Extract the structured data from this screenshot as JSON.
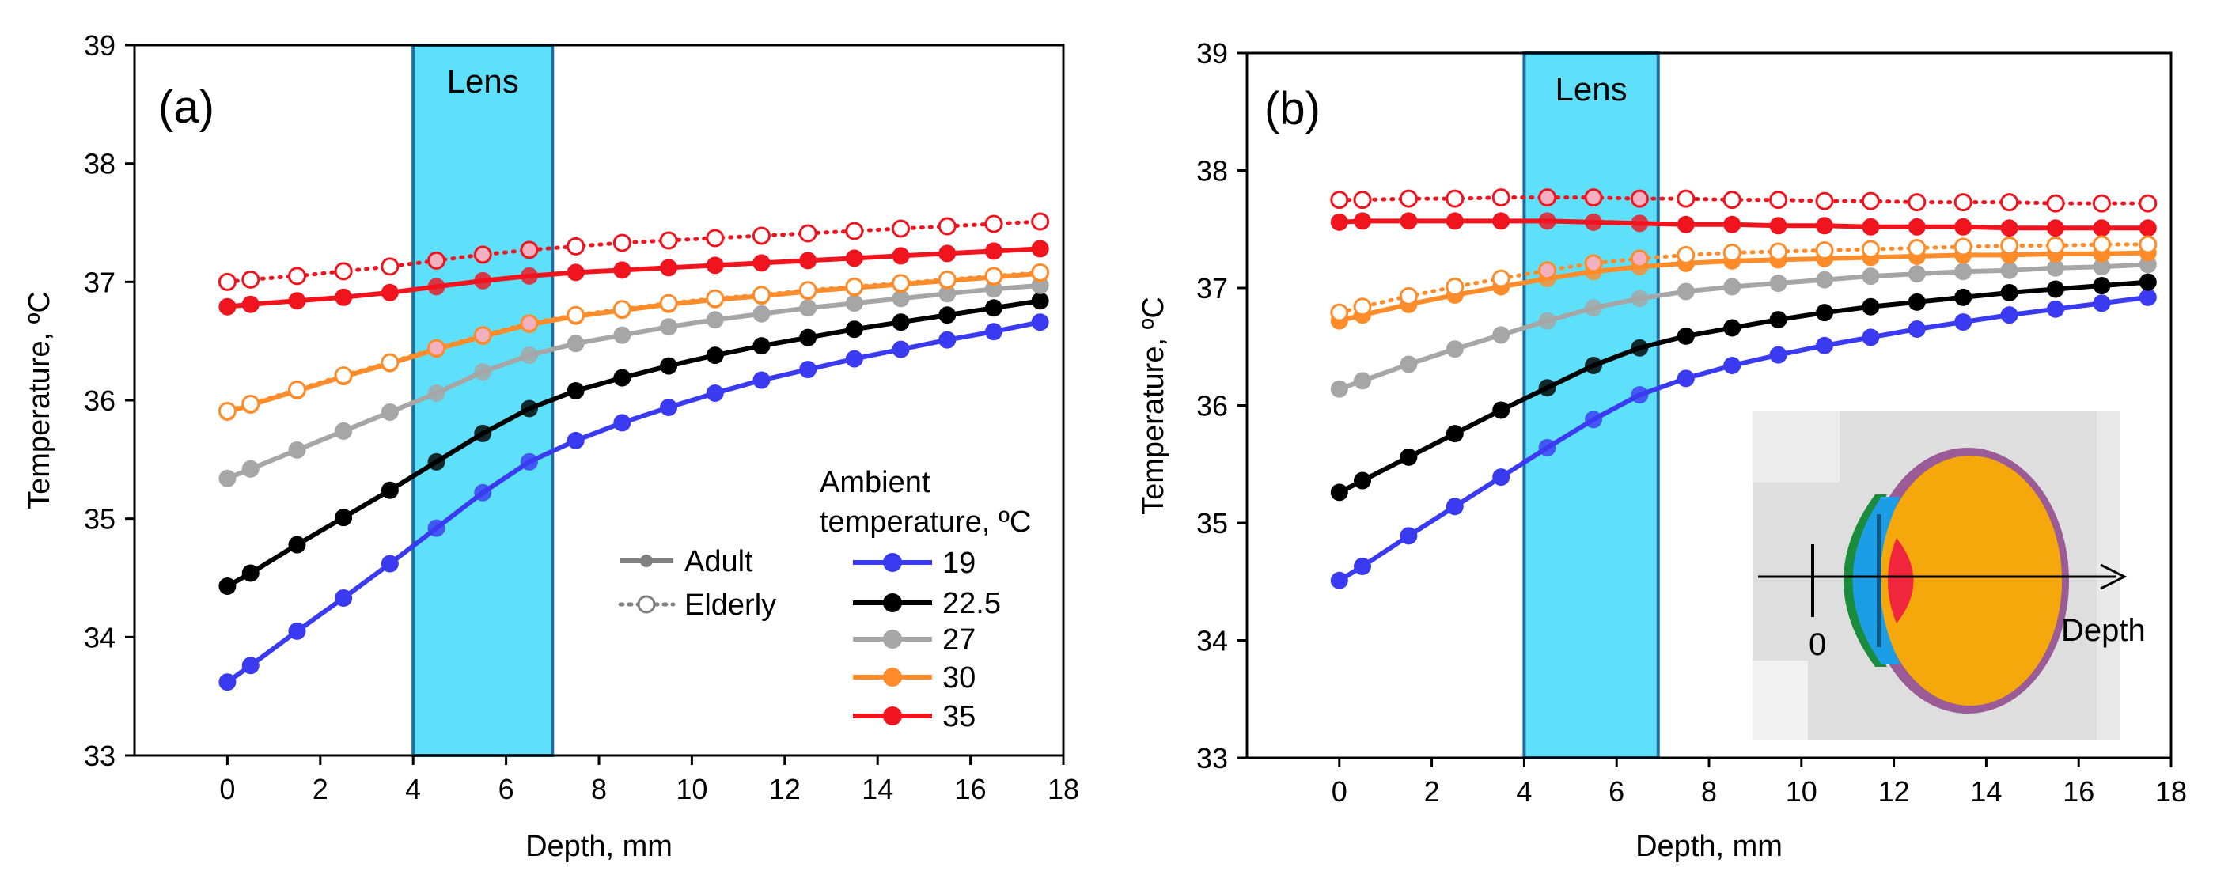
{
  "colors": {
    "19": "#3a3af0",
    "22.5": "#000000",
    "27": "#a6a6a6",
    "30": "#ff8c2a",
    "35": "#f0141e",
    "lens_fill": "#5ee0fa",
    "lens_edge": "#1a6ea0"
  },
  "legend": {
    "ambient_line1": "Ambient",
    "ambient_line2": "temperature, ºC",
    "adult": "Adult",
    "elderly": "Elderly"
  },
  "inset": {
    "zero_label": "0",
    "depth_label": "Depth"
  },
  "chart_data": [
    {
      "type": "line",
      "panel_label": "(a)",
      "lens_label": "Lens",
      "lens_range": [
        4,
        7
      ],
      "xlabel": "Depth, mm",
      "ylabel": "Temperature, ºC",
      "xlim": [
        -2,
        18
      ],
      "ylim": [
        33,
        39
      ],
      "xticks": [
        0,
        2,
        4,
        6,
        8,
        10,
        12,
        14,
        16,
        18
      ],
      "yticks": [
        33,
        34,
        35,
        36,
        37,
        38,
        39
      ],
      "x": [
        0,
        0.5,
        1.5,
        2.5,
        3.5,
        4.5,
        5.5,
        6.5,
        7.5,
        8.5,
        9.5,
        10.5,
        11.5,
        12.5,
        13.5,
        14.5,
        15.5,
        16.5,
        17.5
      ],
      "series": [
        {
          "name": "19",
          "group": "Adult",
          "style": "solid",
          "values": [
            33.62,
            33.76,
            34.05,
            34.33,
            34.62,
            34.92,
            35.22,
            35.48,
            35.66,
            35.81,
            35.94,
            36.06,
            36.17,
            36.26,
            36.35,
            36.43,
            36.51,
            36.58,
            36.66
          ]
        },
        {
          "name": "22.5",
          "group": "Adult",
          "style": "solid",
          "values": [
            34.43,
            34.54,
            34.78,
            35.01,
            35.24,
            35.48,
            35.72,
            35.93,
            36.08,
            36.19,
            36.29,
            36.38,
            36.46,
            36.53,
            36.6,
            36.66,
            36.72,
            36.78,
            36.84
          ]
        },
        {
          "name": "27",
          "group": "Adult",
          "style": "solid",
          "values": [
            35.34,
            35.42,
            35.58,
            35.74,
            35.9,
            36.06,
            36.24,
            36.38,
            36.48,
            36.55,
            36.62,
            36.68,
            36.73,
            36.78,
            36.82,
            36.86,
            36.9,
            36.94,
            36.97
          ]
        },
        {
          "name": "30",
          "group": "Adult",
          "style": "solid",
          "values": [
            35.9,
            35.96,
            36.08,
            36.2,
            36.31,
            36.43,
            36.54,
            36.64,
            36.71,
            36.76,
            36.81,
            36.85,
            36.88,
            36.92,
            36.95,
            36.98,
            37.01,
            37.04,
            37.07
          ]
        },
        {
          "name": "35",
          "group": "Adult",
          "style": "solid",
          "values": [
            36.79,
            36.81,
            36.84,
            36.87,
            36.91,
            36.96,
            37.01,
            37.05,
            37.08,
            37.1,
            37.12,
            37.14,
            37.16,
            37.18,
            37.2,
            37.22,
            37.24,
            37.26,
            37.28
          ]
        },
        {
          "name": "35",
          "group": "Elderly",
          "style": "dotted",
          "values": [
            37.0,
            37.02,
            37.05,
            37.09,
            37.13,
            37.18,
            37.23,
            37.27,
            37.3,
            37.33,
            37.35,
            37.37,
            37.39,
            37.41,
            37.43,
            37.45,
            37.47,
            37.49,
            37.51
          ]
        },
        {
          "name": "30",
          "group": "Elderly",
          "style": "dotted",
          "values": [
            35.91,
            35.97,
            36.09,
            36.21,
            36.32,
            36.44,
            36.55,
            36.65,
            36.72,
            36.77,
            36.82,
            36.86,
            36.89,
            36.93,
            36.96,
            36.99,
            37.02,
            37.05,
            37.08
          ]
        }
      ]
    },
    {
      "type": "line",
      "panel_label": "(b)",
      "lens_label": "Lens",
      "lens_range": [
        4,
        6.9
      ],
      "xlabel": "Depth, mm",
      "ylabel": "Temperature, ºC",
      "xlim": [
        -2,
        18
      ],
      "ylim": [
        33,
        39
      ],
      "xticks": [
        0,
        2,
        4,
        6,
        8,
        10,
        12,
        14,
        16,
        18
      ],
      "yticks": [
        33,
        34,
        35,
        36,
        37,
        38,
        39
      ],
      "x": [
        0,
        0.5,
        1.5,
        2.5,
        3.5,
        4.5,
        5.5,
        6.5,
        7.5,
        8.5,
        9.5,
        10.5,
        11.5,
        12.5,
        13.5,
        14.5,
        15.5,
        16.5,
        17.5
      ],
      "series": [
        {
          "name": "19",
          "group": "Adult",
          "style": "solid",
          "values": [
            34.51,
            34.63,
            34.89,
            35.14,
            35.39,
            35.64,
            35.88,
            36.09,
            36.23,
            36.34,
            36.43,
            36.51,
            36.58,
            36.65,
            36.71,
            36.77,
            36.82,
            36.87,
            36.92
          ]
        },
        {
          "name": "22.5",
          "group": "Adult",
          "style": "solid",
          "values": [
            35.26,
            35.36,
            35.56,
            35.76,
            35.96,
            36.15,
            36.34,
            36.49,
            36.59,
            36.66,
            36.73,
            36.79,
            36.84,
            36.88,
            36.92,
            36.96,
            36.99,
            37.02,
            37.05
          ]
        },
        {
          "name": "27",
          "group": "Adult",
          "style": "solid",
          "values": [
            36.14,
            36.21,
            36.35,
            36.48,
            36.6,
            36.72,
            36.83,
            36.91,
            36.97,
            37.01,
            37.04,
            37.07,
            37.1,
            37.12,
            37.14,
            37.15,
            37.17,
            37.18,
            37.2
          ]
        },
        {
          "name": "30",
          "group": "Adult",
          "style": "solid",
          "values": [
            36.72,
            36.77,
            36.86,
            36.94,
            37.01,
            37.08,
            37.14,
            37.18,
            37.21,
            37.23,
            37.24,
            37.25,
            37.26,
            37.27,
            37.28,
            37.28,
            37.29,
            37.29,
            37.3
          ]
        },
        {
          "name": "35",
          "group": "Adult",
          "style": "solid",
          "values": [
            37.56,
            37.57,
            37.57,
            37.57,
            37.57,
            37.57,
            37.56,
            37.55,
            37.54,
            37.54,
            37.53,
            37.53,
            37.52,
            37.52,
            37.52,
            37.51,
            37.51,
            37.51,
            37.51
          ]
        },
        {
          "name": "35",
          "group": "Elderly",
          "style": "dotted",
          "values": [
            37.75,
            37.75,
            37.76,
            37.76,
            37.77,
            37.77,
            37.77,
            37.76,
            37.76,
            37.75,
            37.75,
            37.74,
            37.74,
            37.73,
            37.73,
            37.73,
            37.72,
            37.72,
            37.72
          ]
        },
        {
          "name": "30",
          "group": "Elderly",
          "style": "dotted",
          "values": [
            36.79,
            36.84,
            36.93,
            37.01,
            37.08,
            37.15,
            37.21,
            37.25,
            37.28,
            37.3,
            37.31,
            37.32,
            37.33,
            37.34,
            37.35,
            37.36,
            37.36,
            37.37,
            37.37
          ]
        }
      ]
    }
  ]
}
